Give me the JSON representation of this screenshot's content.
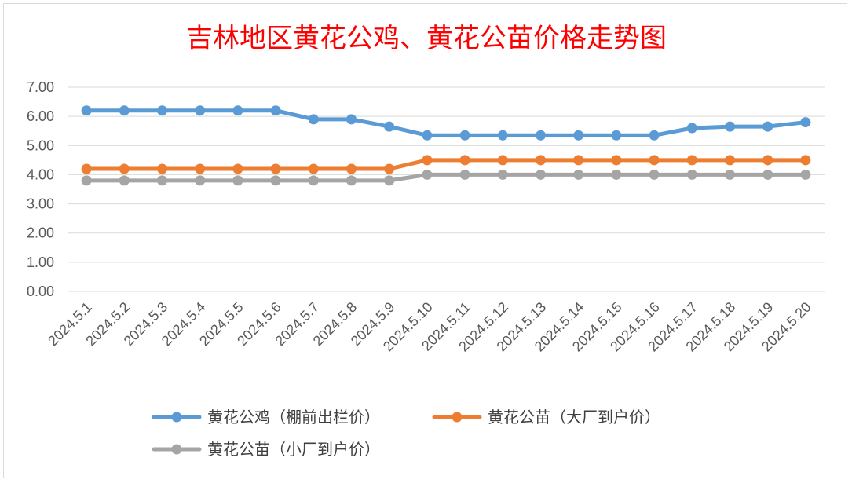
{
  "chart_data": {
    "type": "line",
    "title": "吉林地区黄花公鸡、黄花公苗价格走势图",
    "xlabel": "",
    "ylabel": "",
    "ylim": [
      0,
      7
    ],
    "yticks": [
      "0.00",
      "1.00",
      "2.00",
      "3.00",
      "4.00",
      "5.00",
      "6.00",
      "7.00"
    ],
    "grid": true,
    "legend_position": "bottom",
    "categories": [
      "2024.5.1",
      "2024.5.2",
      "2024.5.3",
      "2024.5.4",
      "2024.5.5",
      "2024.5.6",
      "2024.5.7",
      "2024.5.8",
      "2024.5.9",
      "2024.5.10",
      "2024.5.11",
      "2024.5.12",
      "2024.5.13",
      "2024.5.14",
      "2024.5.15",
      "2024.5.16",
      "2024.5.17",
      "2024.5.18",
      "2024.5.19",
      "2024.5.20"
    ],
    "series": [
      {
        "name": "黄花公鸡（棚前出栏价）",
        "color": "#5b9bd5",
        "values": [
          6.2,
          6.2,
          6.2,
          6.2,
          6.2,
          6.2,
          5.9,
          5.9,
          5.65,
          5.35,
          5.35,
          5.35,
          5.35,
          5.35,
          5.35,
          5.35,
          5.6,
          5.65,
          5.65,
          5.8
        ]
      },
      {
        "name": "黄花公苗（大厂到户价）",
        "color": "#ed7d31",
        "values": [
          4.2,
          4.2,
          4.2,
          4.2,
          4.2,
          4.2,
          4.2,
          4.2,
          4.2,
          4.5,
          4.5,
          4.5,
          4.5,
          4.5,
          4.5,
          4.5,
          4.5,
          4.5,
          4.5,
          4.5
        ]
      },
      {
        "name": "黄花公苗（小厂到户价）",
        "color": "#a5a5a5",
        "values": [
          3.8,
          3.8,
          3.8,
          3.8,
          3.8,
          3.8,
          3.8,
          3.8,
          3.8,
          4.0,
          4.0,
          4.0,
          4.0,
          4.0,
          4.0,
          4.0,
          4.0,
          4.0,
          4.0,
          4.0
        ]
      }
    ]
  }
}
